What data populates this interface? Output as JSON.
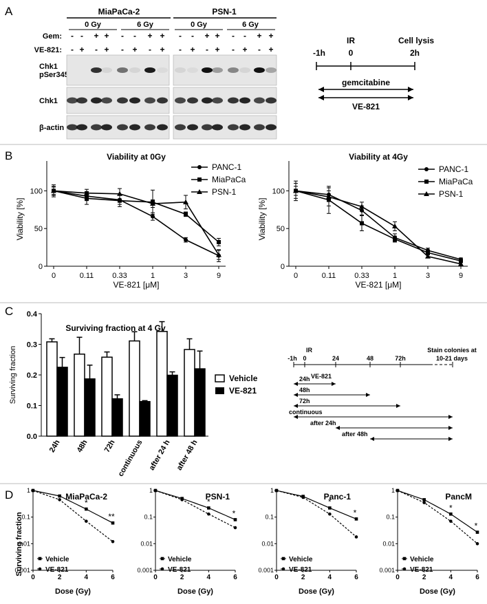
{
  "panelA": {
    "letter": "A",
    "cell_lines": [
      "MiaPaCa-2",
      "PSN-1"
    ],
    "doses": [
      "0 Gy",
      "6 Gy"
    ],
    "row_labels": {
      "gem": "Gem:",
      "ve": "VE-821:"
    },
    "gem_signs": [
      "-",
      "-",
      "+",
      "+",
      "-",
      "-",
      "+",
      "+"
    ],
    "ve_signs": [
      "-",
      "+",
      "-",
      "+",
      "-",
      "+",
      "-",
      "+"
    ],
    "blot_labels": [
      "Chk1 pSer345",
      "Chk1",
      "β-actin"
    ],
    "blot_label_lines": [
      [
        "Chk1",
        "pSer345"
      ],
      [
        "Chk1"
      ],
      [
        "β-actin"
      ]
    ],
    "timeline": {
      "ticks": [
        "-1h",
        "0",
        "2h"
      ],
      "top_labels": [
        "IR",
        "Cell lysis"
      ],
      "arrows": [
        "gemcitabine",
        "VE-821"
      ]
    }
  },
  "panelB": {
    "letter": "B",
    "xlabel": "VE-821 [μM]",
    "ylabel": "Viability [%]",
    "xticks": [
      "0",
      "0.11",
      "0.33",
      "1",
      "3",
      "9"
    ],
    "yticks": [
      0,
      50,
      100
    ],
    "legend": [
      "PANC-1",
      "MiaPaCa",
      "PSN-1"
    ]
  },
  "panelC": {
    "letter": "C",
    "legend": [
      "Vehicle",
      "VE-821"
    ],
    "timeline": {
      "ticks": [
        "-1h",
        "0",
        "24",
        "48",
        "72h",
        "10-21 days"
      ],
      "ir": "IR",
      "stain": "Stain colonies at",
      "arrow_labels": [
        "VE-821",
        "24h",
        "48h",
        "72h",
        "continuous",
        "after 24h",
        "after 48h"
      ]
    }
  },
  "panelD": {
    "letter": "D",
    "ylabel": "Surviving fraction",
    "xlabel": "Dose (Gy)",
    "xticks": [
      "0",
      "2",
      "4",
      "6"
    ],
    "yticks": [
      "1",
      "0.1",
      "0.01",
      "0.001"
    ],
    "legend": [
      "Vehicle",
      "VE-821"
    ]
  },
  "chart_data": [
    {
      "type": "line",
      "title": "Viability at 0Gy",
      "xlabel": "VE-821 [μM]",
      "ylabel": "Viability [%]",
      "categories": [
        "0",
        "0.11",
        "0.33",
        "1",
        "3",
        "9"
      ],
      "ylim": [
        0,
        120
      ],
      "series": [
        {
          "name": "PANC-1",
          "marker": "circle",
          "values": [
            100,
            93,
            88,
            66,
            35,
            14
          ],
          "err": [
            6,
            6,
            6,
            5,
            3,
            8
          ]
        },
        {
          "name": "MiaPaCa",
          "marker": "square",
          "values": [
            100,
            90,
            87,
            85,
            69,
            32
          ],
          "err": [
            5,
            8,
            8,
            16,
            3,
            5
          ]
        },
        {
          "name": "PSN-1",
          "marker": "triangle",
          "values": [
            100,
            97,
            96,
            83,
            85,
            15
          ],
          "err": [
            8,
            5,
            7,
            5,
            9,
            6
          ]
        }
      ]
    },
    {
      "type": "line",
      "title": "Viability at 4Gy",
      "xlabel": "VE-821 [μM]",
      "ylabel": "Viability [%]",
      "categories": [
        "0",
        "0.11",
        "0.33",
        "1",
        "3",
        "9"
      ],
      "ylim": [
        0,
        120
      ],
      "series": [
        {
          "name": "PANC-1",
          "marker": "circle",
          "values": [
            100,
            95,
            74,
            38,
            21,
            9
          ],
          "err": [
            13,
            5,
            6,
            5,
            3,
            2
          ]
        },
        {
          "name": "MiaPaCa",
          "marker": "square",
          "values": [
            100,
            88,
            57,
            36,
            18,
            7
          ],
          "err": [
            10,
            18,
            10,
            4,
            3,
            2
          ]
        },
        {
          "name": "PSN-1",
          "marker": "triangle",
          "values": [
            100,
            92,
            79,
            53,
            13,
            3
          ],
          "err": [
            6,
            12,
            6,
            6,
            2,
            2
          ]
        }
      ]
    },
    {
      "type": "bar",
      "title": "Surviving fraction at 4 Gy",
      "ylabel": "Surviving fraction",
      "categories": [
        "24h",
        "48h",
        "72h",
        "continuous",
        "after 24 h",
        "after 48 h"
      ],
      "ylim": [
        0,
        0.4
      ],
      "series": [
        {
          "name": "Vehicle",
          "values": [
            0.308,
            0.268,
            0.258,
            0.311,
            0.342,
            0.283
          ],
          "err": [
            0.01,
            0.055,
            0.017,
            0.03,
            0.032,
            0.035
          ]
        },
        {
          "name": "VE-821",
          "values": [
            0.225,
            0.187,
            0.122,
            0.113,
            0.199,
            0.22
          ],
          "err": [
            0.032,
            0.045,
            0.013,
            0.003,
            0.011,
            0.058
          ]
        }
      ]
    },
    {
      "type": "line",
      "title": "MiaPaCa-2",
      "xlabel": "Dose (Gy)",
      "ylabel": "Surviving fraction",
      "x": [
        0,
        2,
        4,
        6
      ],
      "ylim": [
        0.001,
        1
      ],
      "log_y": true,
      "annotations": [
        "*",
        "**"
      ],
      "series": [
        {
          "name": "Vehicle",
          "marker": "square",
          "line": "solid",
          "values": [
            1,
            0.62,
            0.2,
            0.06
          ]
        },
        {
          "name": "VE-821",
          "marker": "circle",
          "line": "dashed",
          "values": [
            1,
            0.45,
            0.07,
            0.012
          ]
        }
      ]
    },
    {
      "type": "line",
      "title": "PSN-1",
      "xlabel": "Dose (Gy)",
      "ylabel": "Surviving fraction",
      "x": [
        0,
        2,
        4,
        6
      ],
      "ylim": [
        0.001,
        1
      ],
      "log_y": true,
      "annotations": [
        "*",
        "*"
      ],
      "series": [
        {
          "name": "Vehicle",
          "marker": "square",
          "line": "solid",
          "values": [
            1,
            0.5,
            0.22,
            0.08
          ]
        },
        {
          "name": "VE-821",
          "marker": "circle",
          "line": "dashed",
          "values": [
            1,
            0.45,
            0.13,
            0.04
          ]
        }
      ]
    },
    {
      "type": "line",
      "title": "Panc-1",
      "xlabel": "Dose (Gy)",
      "ylabel": "Surviving fraction",
      "x": [
        0,
        2,
        4,
        6
      ],
      "ylim": [
        0.001,
        1
      ],
      "log_y": true,
      "annotations": [
        "*",
        "*"
      ],
      "series": [
        {
          "name": "Vehicle",
          "marker": "square",
          "line": "solid",
          "values": [
            1,
            0.6,
            0.22,
            0.085
          ]
        },
        {
          "name": "VE-821",
          "marker": "circle",
          "line": "dashed",
          "values": [
            1,
            0.55,
            0.13,
            0.018
          ]
        }
      ]
    },
    {
      "type": "line",
      "title": "PancM",
      "xlabel": "Dose (Gy)",
      "ylabel": "Surviving fraction",
      "x": [
        0,
        2,
        4,
        6
      ],
      "ylim": [
        0.001,
        1
      ],
      "log_y": true,
      "annotations": [
        "*",
        "*"
      ],
      "series": [
        {
          "name": "Vehicle",
          "marker": "square",
          "line": "solid",
          "values": [
            1,
            0.45,
            0.13,
            0.027
          ]
        },
        {
          "name": "VE-821",
          "marker": "circle",
          "line": "dashed",
          "values": [
            1,
            0.35,
            0.07,
            0.01
          ]
        }
      ]
    }
  ]
}
